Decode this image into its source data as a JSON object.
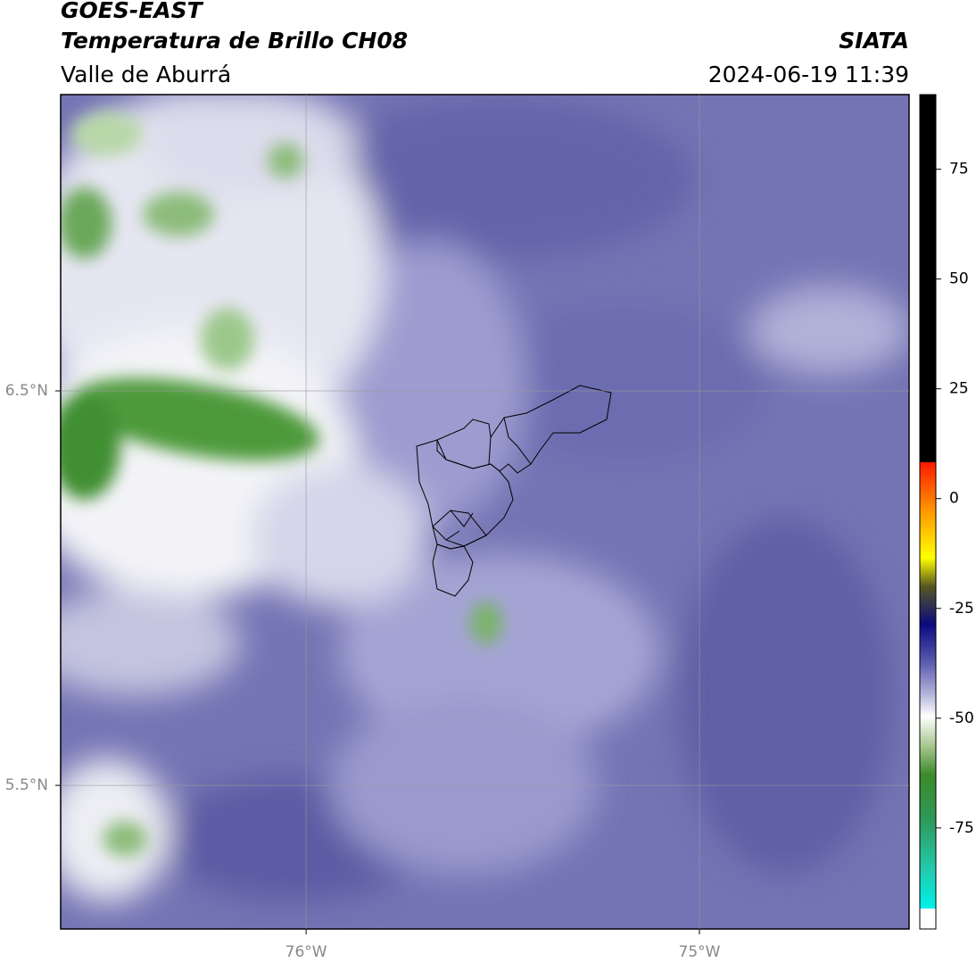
{
  "chart_data": {
    "type": "map",
    "title": "GOES-EAST",
    "subtitle": "Temperatura de Brillo CH08",
    "source": "SIATA",
    "region": "Valle de Aburrá",
    "timestamp": "2024-06-19 11:39",
    "xlim": [
      -76.624,
      -74.467
    ],
    "xticks": [
      {
        "value": -76,
        "label": "76°W"
      },
      {
        "value": -75,
        "label": "75°W"
      }
    ],
    "ylim": [
      5.136,
      7.251
    ],
    "yticks": [
      {
        "value": 6.5,
        "label": "6.5°N"
      },
      {
        "value": 5.5,
        "label": "5.5°N"
      }
    ],
    "grid": true,
    "colorbar": {
      "lim": [
        -98,
        92
      ],
      "ticks": [
        75,
        50,
        25,
        0,
        -25,
        -50,
        -75
      ]
    }
  }
}
